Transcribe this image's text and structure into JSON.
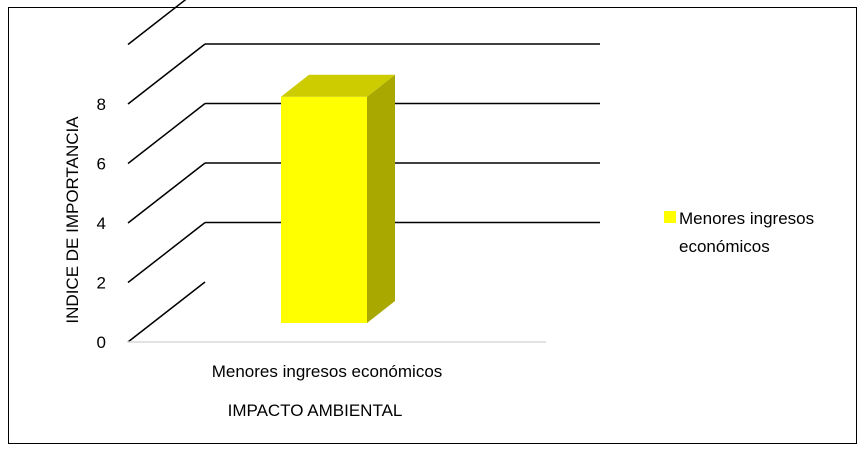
{
  "chart_data": {
    "type": "bar",
    "style": "3d",
    "categories": [
      "Menores ingresos económicos"
    ],
    "series": [
      {
        "name": "Menores ingresos económicos",
        "values": [
          7
        ],
        "color": "#ffff00",
        "side_color": "#a8a800",
        "top_color": "#cccc00"
      }
    ],
    "title": "",
    "xlabel": "IMPACTO AMBIENTAL",
    "ylabel": "INDICE DE IMPORTANCIA",
    "ylim": [
      0,
      10
    ],
    "yticks": [
      0,
      2,
      4,
      6,
      8
    ],
    "grid": true,
    "legend_position": "right"
  }
}
